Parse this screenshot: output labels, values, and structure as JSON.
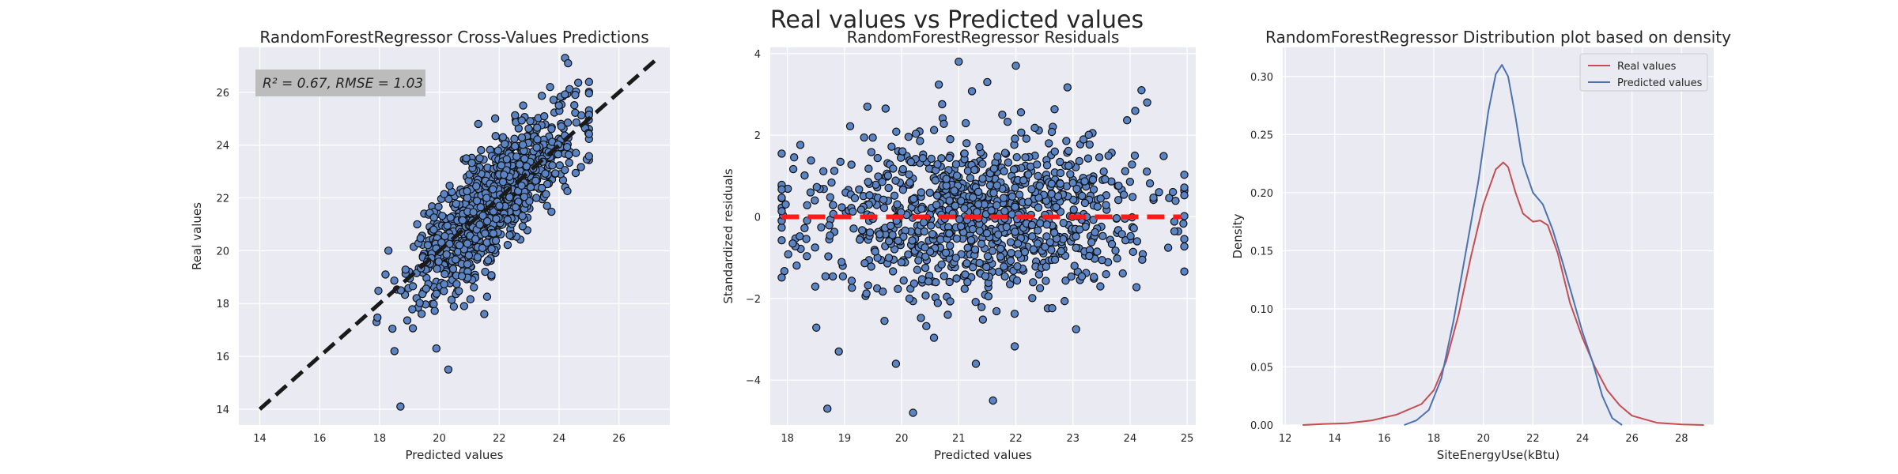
{
  "figure": {
    "suptitle": "Real values vs Predicted values",
    "colors": {
      "background": "#eaeaf2",
      "grid": "#ffffff",
      "points": "#5b84c4",
      "point_edge": "#111111",
      "identity_line": "#1a1a1a",
      "zero_line": "#ff1a1a",
      "real_series": "#c44e52",
      "predicted_series": "#4c72b0",
      "annotation_box": "#bcbcbc"
    }
  },
  "chart_data": [
    {
      "type": "scatter",
      "title": "RandomForestRegressor Cross-Values Predictions",
      "xlabel": "Predicted values",
      "ylabel": "Real values",
      "xlim": [
        13.3,
        27.7
      ],
      "ylim": [
        13.4,
        27.7
      ],
      "xticks": [
        14,
        16,
        18,
        20,
        22,
        24,
        26
      ],
      "yticks": [
        14,
        16,
        18,
        20,
        22,
        24,
        26
      ],
      "annotation": "R² = 0.67, RMSE = 1.03",
      "identity_line": [
        [
          14.0,
          14.0
        ],
        [
          27.3,
          27.3
        ]
      ],
      "grid": true,
      "generated_points": {
        "count": 1000,
        "x_mean": 21.8,
        "x_sd": 1.35,
        "x_min": 17.9,
        "x_max": 25.0,
        "residual_sd": 1.03,
        "slope": 1.0,
        "intercept": 0.0,
        "y_min": 14.0,
        "y_max": 27.3
      },
      "points": [
        {
          "x": 18.7,
          "y": 14.1
        },
        {
          "x": 24.2,
          "y": 27.3
        },
        {
          "x": 24.3,
          "y": 27.1
        },
        {
          "x": 23.7,
          "y": 26.2
        },
        {
          "x": 20.3,
          "y": 15.5
        },
        {
          "x": 18.5,
          "y": 16.2
        },
        {
          "x": 19.9,
          "y": 16.3
        },
        {
          "x": 21.5,
          "y": 17.6
        },
        {
          "x": 18.2,
          "y": 19.1
        },
        {
          "x": 22.8,
          "y": 25.5
        },
        {
          "x": 21.3,
          "y": 24.8
        },
        {
          "x": 20.9,
          "y": 23.5
        }
      ]
    },
    {
      "type": "scatter",
      "title": "RandomForestRegressor Residuals",
      "xlabel": "Predicted values",
      "ylabel": "Standardized residuals",
      "xlim": [
        17.7,
        25.15
      ],
      "ylim": [
        -5.1,
        4.15
      ],
      "xticks": [
        18,
        19,
        20,
        21,
        22,
        23,
        24,
        25
      ],
      "yticks": [
        -4,
        -2,
        0,
        2,
        4
      ],
      "zero_line": [
        [
          17.9,
          0
        ],
        [
          24.9,
          0
        ]
      ],
      "grid": true,
      "generated_points": {
        "count": 1000,
        "x_mean": 21.3,
        "x_sd": 1.5,
        "x_min": 17.9,
        "x_max": 24.95,
        "y_sd": 1.0,
        "y_min": -4.8,
        "y_max": 3.8
      },
      "points": [
        {
          "x": 20.2,
          "y": -4.8
        },
        {
          "x": 18.7,
          "y": -4.7
        },
        {
          "x": 21.6,
          "y": -4.5
        },
        {
          "x": 21.0,
          "y": 3.8
        },
        {
          "x": 22.0,
          "y": 3.7
        },
        {
          "x": 24.2,
          "y": 3.1
        },
        {
          "x": 19.9,
          "y": -3.6
        },
        {
          "x": 21.3,
          "y": -3.6
        },
        {
          "x": 21.5,
          "y": 3.3
        },
        {
          "x": 24.3,
          "y": 2.8
        },
        {
          "x": 19.4,
          "y": 2.7
        },
        {
          "x": 18.9,
          "y": -3.3
        }
      ]
    },
    {
      "type": "line",
      "title": "RandomForestRegressor Distribution plot based on density",
      "xlabel": "SiteEnergyUse(kBtu)",
      "ylabel": "Density",
      "xlim": [
        11.9,
        29.3
      ],
      "ylim": [
        0,
        0.325
      ],
      "xticks": [
        12,
        14,
        16,
        18,
        20,
        22,
        24,
        26,
        28
      ],
      "yticks": [
        0.0,
        0.05,
        0.1,
        0.15,
        0.2,
        0.25,
        0.3
      ],
      "ytick_labels": [
        "0.00",
        "0.05",
        "0.10",
        "0.15",
        "0.20",
        "0.25",
        "0.30"
      ],
      "legend_position": "top-right",
      "grid": true,
      "series": [
        {
          "name": "Real values",
          "color": "#c44e52",
          "x": [
            12.7,
            13.5,
            14.5,
            15.5,
            16.5,
            17.5,
            18.0,
            18.5,
            19.0,
            19.5,
            20.0,
            20.5,
            20.8,
            21.0,
            21.3,
            21.6,
            22.0,
            22.3,
            22.6,
            23.0,
            23.5,
            24.0,
            24.5,
            25.0,
            25.5,
            26.0,
            27.0,
            28.0,
            28.9
          ],
          "y": [
            0.0,
            0.0008,
            0.0015,
            0.004,
            0.009,
            0.018,
            0.03,
            0.055,
            0.095,
            0.145,
            0.19,
            0.22,
            0.226,
            0.222,
            0.2,
            0.182,
            0.175,
            0.176,
            0.172,
            0.148,
            0.105,
            0.075,
            0.05,
            0.03,
            0.017,
            0.008,
            0.002,
            0.0005,
            0.0
          ]
        },
        {
          "name": "Predicted values",
          "color": "#4c72b0",
          "x": [
            16.8,
            17.3,
            17.8,
            18.3,
            18.8,
            19.3,
            19.8,
            20.2,
            20.5,
            20.75,
            21.0,
            21.3,
            21.6,
            22.0,
            22.4,
            22.8,
            23.2,
            23.6,
            24.0,
            24.4,
            24.8,
            25.2,
            25.6
          ],
          "y": [
            0.0,
            0.004,
            0.013,
            0.04,
            0.09,
            0.15,
            0.21,
            0.27,
            0.302,
            0.31,
            0.3,
            0.265,
            0.225,
            0.2,
            0.19,
            0.168,
            0.14,
            0.11,
            0.08,
            0.055,
            0.025,
            0.006,
            0.0
          ]
        }
      ]
    }
  ]
}
